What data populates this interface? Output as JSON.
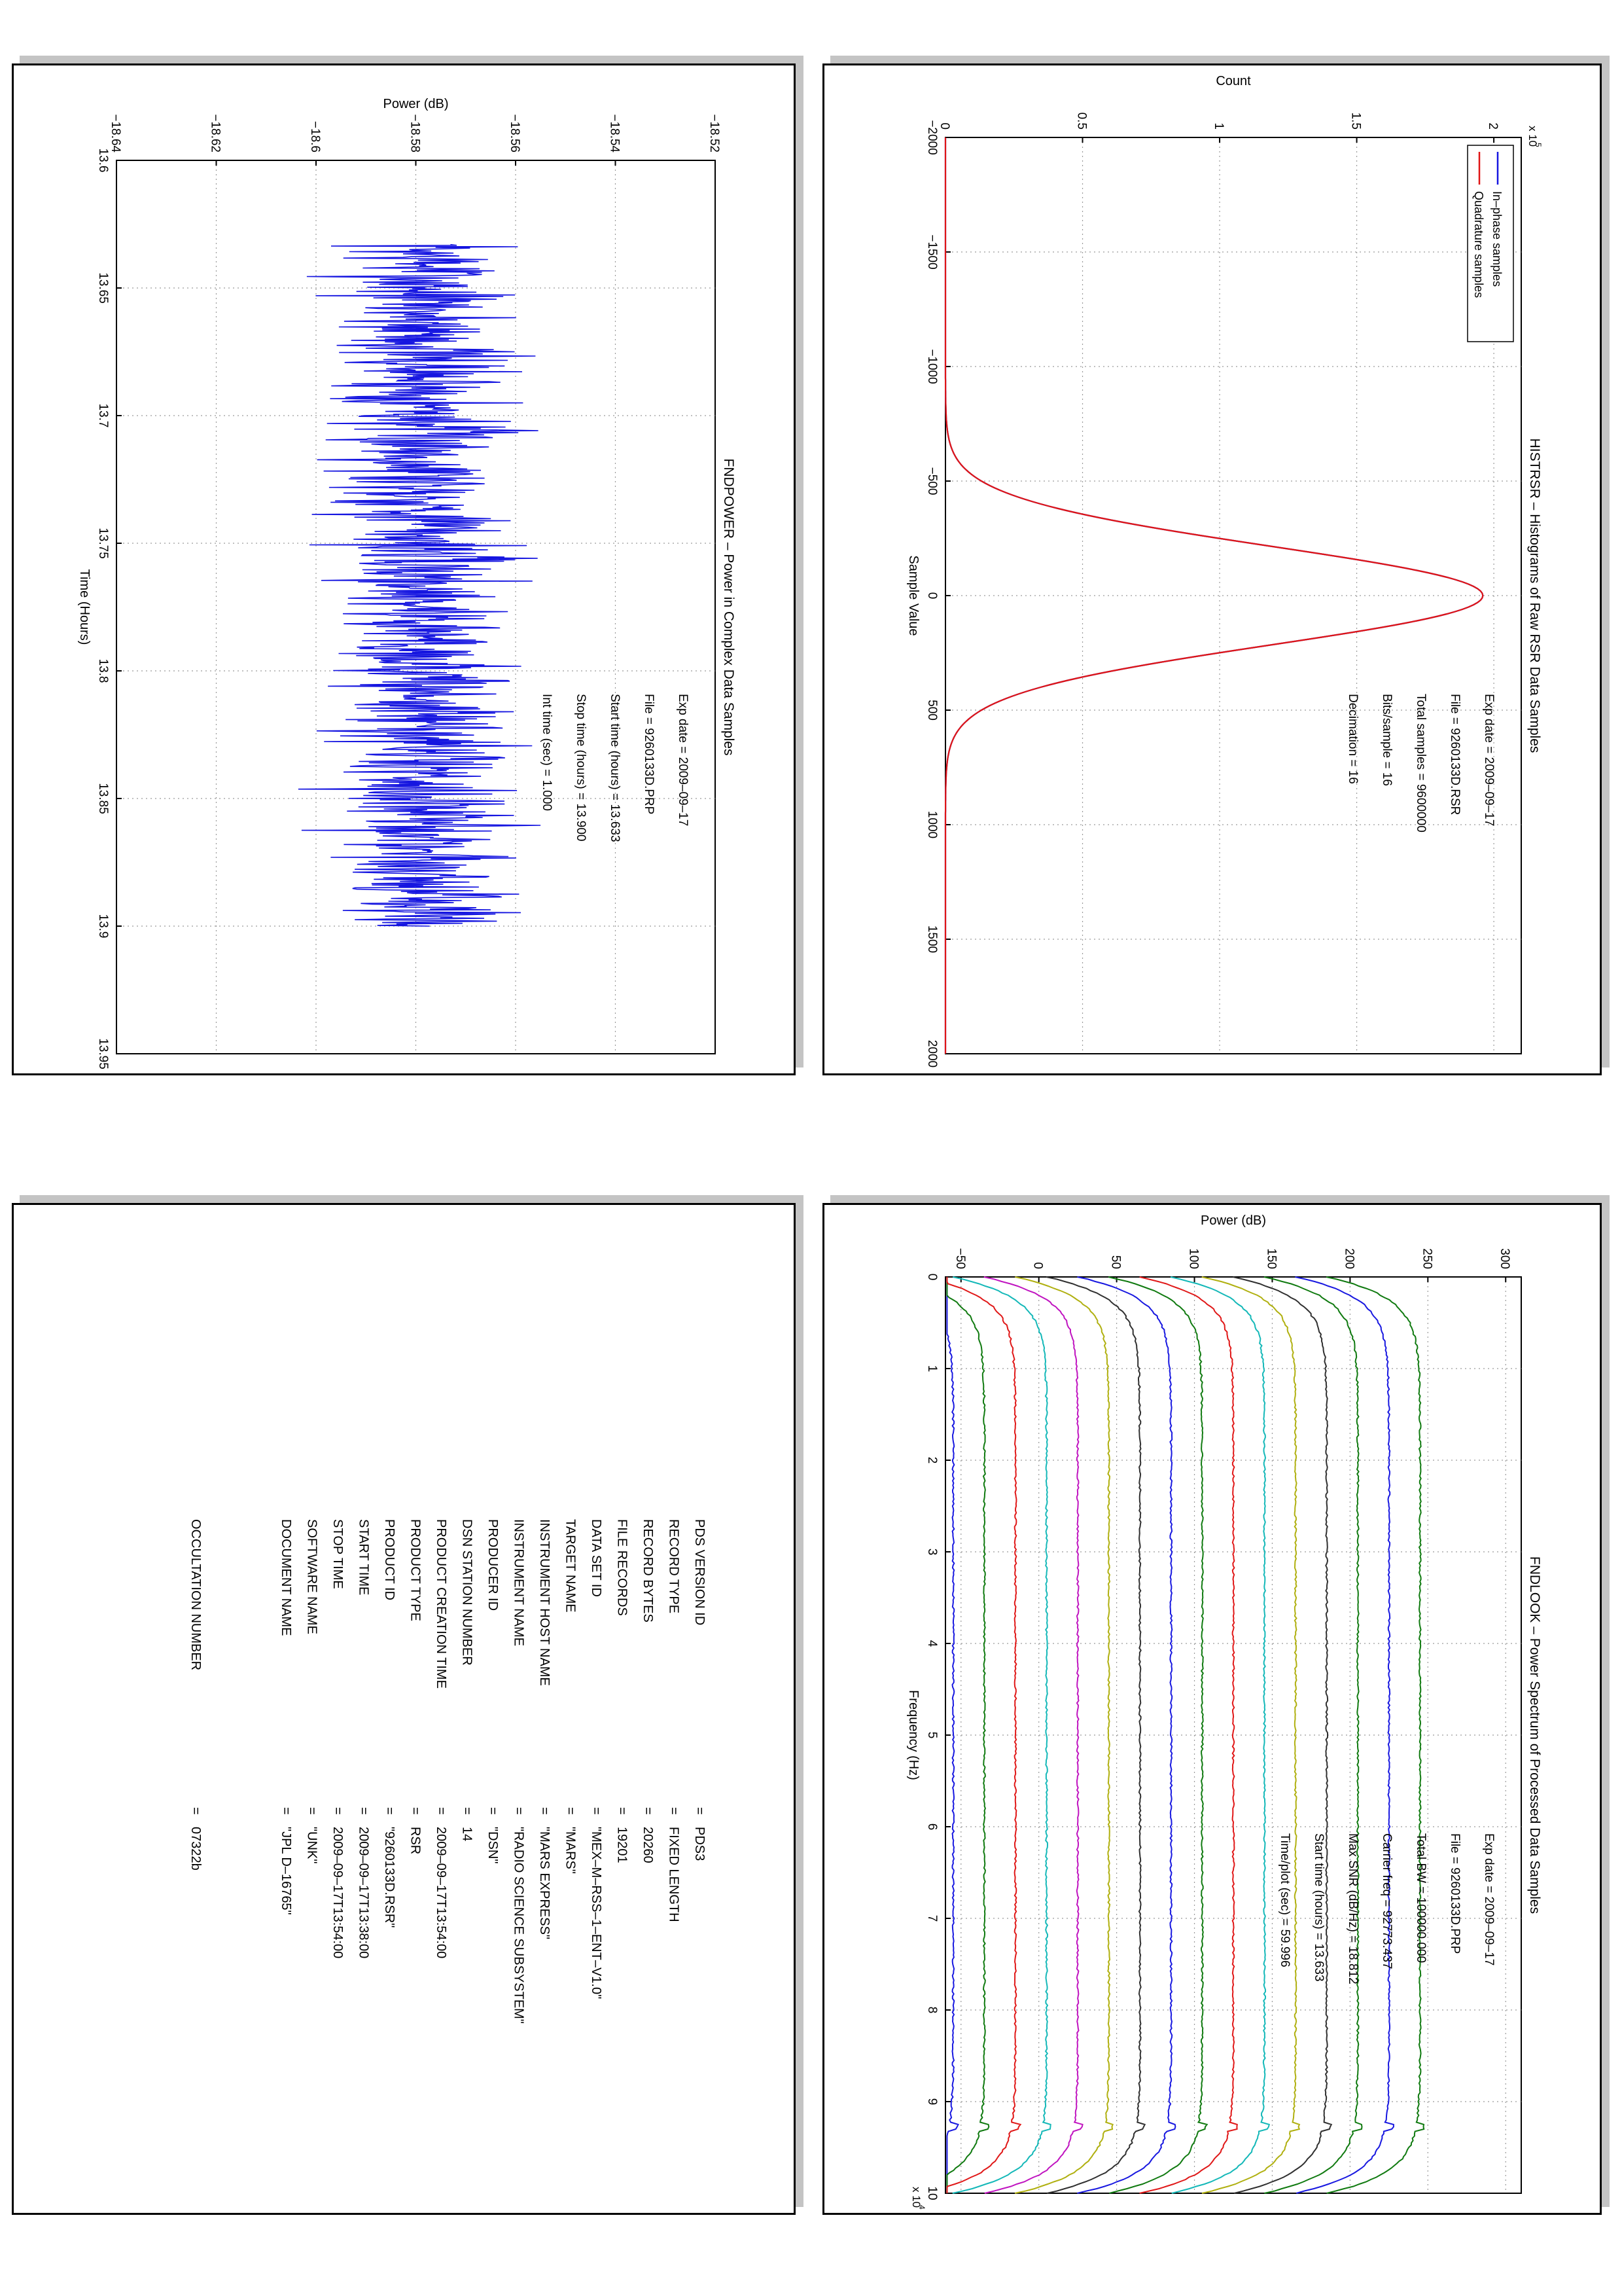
{
  "colors": {
    "inphase": "#1515e0",
    "quadrature": "#e01515",
    "power_line": "#1515e0",
    "spectrum_series": [
      "#1818e0",
      "#107a10",
      "#e01818",
      "#14b8b8",
      "#c014c0",
      "#b0b010",
      "#303030",
      "#1818e0",
      "#107a10",
      "#e01818",
      "#14b8b8",
      "#b0b010",
      "#303030",
      "#107a10"
    ]
  },
  "chart_data": [
    {
      "type": "line",
      "title": "HISTRSR – Histograms of Raw RSR Data Samples",
      "xlabel": "Sample Value",
      "ylabel": "Count",
      "xlim": [
        -2000,
        2000
      ],
      "ylim": [
        0,
        210000
      ],
      "exponent_label": "x 10",
      "exponent_power": "5",
      "xticks": [
        "−2000",
        "−1500",
        "−1000",
        "−500",
        "0",
        "500",
        "1000",
        "1500",
        "2000"
      ],
      "yticks": [
        "0",
        "0.5",
        "1",
        "1.5",
        "2"
      ],
      "grid": true,
      "legend_position": "top-left",
      "series": [
        {
          "name": "In–phase samples",
          "shape": "gaussian",
          "mean": 0,
          "sigma": 215,
          "peak": 196000
        },
        {
          "name": "Quadrature samples",
          "shape": "gaussian",
          "mean": 0,
          "sigma": 215,
          "peak": 196000
        }
      ],
      "annotations": [
        "Exp date = 2009–09–17",
        "File = 9260133D.RSR",
        "Total samples =   9600000",
        "Bits/sample   =       16",
        "Decimation    =       16"
      ]
    },
    {
      "type": "line",
      "title": "FNDPOWER – Power in Complex Data Samples",
      "xlabel": "Time (Hours)",
      "ylabel": "Power (dB)",
      "xlim": [
        13.6,
        13.95
      ],
      "ylim": [
        -18.64,
        -18.52
      ],
      "xticks": [
        "13.6",
        "13.65",
        "13.7",
        "13.75",
        "13.8",
        "13.85",
        "13.9",
        "13.95"
      ],
      "yticks": [
        "−18.64",
        "−18.62",
        "−18.6",
        "−18.58",
        "−18.56",
        "−18.54",
        "−18.52"
      ],
      "grid": true,
      "series": [
        {
          "name": "",
          "x_start": 13.633,
          "x_end": 13.9,
          "mean": -18.578,
          "range": [
            -18.604,
            -18.548
          ]
        }
      ],
      "annotations": [
        "Exp date = 2009–09–17",
        "File = 9260133D.PRP",
        "Start time (hours) = 13.633",
        "Stop time (hours)  = 13.900",
        "Int time (sec)   =     1.000"
      ]
    },
    {
      "type": "line",
      "title": "FNDLOOK – Power Spectrum of Processed Data Samples",
      "xlabel": "Frequency (Hz)",
      "ylabel": "Power (dB)",
      "xlim": [
        0,
        100000
      ],
      "ylim": [
        -60,
        310
      ],
      "exponent_label": "x 10",
      "exponent_power": "4",
      "xticks": [
        "0",
        "1",
        "2",
        "3",
        "4",
        "5",
        "6",
        "7",
        "8",
        "9",
        "10"
      ],
      "yticks": [
        "−50",
        "0",
        "50",
        "100",
        "150",
        "200",
        "250",
        "300"
      ],
      "grid": true,
      "series_offsets_db": [
        -55,
        -35,
        -15,
        5,
        25,
        45,
        65,
        85,
        105,
        125,
        145,
        165,
        185,
        205,
        225,
        245
      ],
      "annotations": [
        "Exp date = 2009–09–17",
        "File = 9260133D.PRP",
        "Total BW =   100000.000",
        "Carrier freq =   92773.437",
        "Max SNR (dB/Hz) =   18.812",
        "Start time (hours) =   13.633",
        "Time/plot (sec) =   59.996"
      ]
    }
  ],
  "label_table": {
    "rows": [
      {
        "key": "PDS VERSION ID",
        "value": "PDS3"
      },
      {
        "key": "RECORD TYPE",
        "value": "FIXED LENGTH"
      },
      {
        "key": "RECORD BYTES",
        "value": "20260"
      },
      {
        "key": "FILE RECORDS",
        "value": "19201"
      },
      {
        "key": "DATA SET ID",
        "value": "\"MEX–M–RSS–1–ENT–V1.0\""
      },
      {
        "key": "TARGET NAME",
        "value": "\"MARS\""
      },
      {
        "key": "INSTRUMENT HOST NAME",
        "value": "\"MARS EXPRESS\""
      },
      {
        "key": "INSTRUMENT NAME",
        "value": "\"RADIO SCIENCE SUBSYSTEM\""
      },
      {
        "key": "PRODUCER ID",
        "value": "\"DSN\""
      },
      {
        "key": "DSN STATION NUMBER",
        "value": "14"
      },
      {
        "key": "PRODUCT CREATION TIME",
        "value": "2009–09–17T13:54:00"
      },
      {
        "key": "PRODUCT TYPE",
        "value": "RSR"
      },
      {
        "key": "PRODUCT ID",
        "value": "\"9260133D.RSR\""
      },
      {
        "key": "START TIME",
        "value": "2009–09–17T13:38:00"
      },
      {
        "key": "STOP TIME",
        "value": "2009–09–17T13:54:00"
      },
      {
        "key": "SOFTWARE NAME",
        "value": "\"UNK\""
      },
      {
        "key": "DOCUMENT NAME",
        "value": "\"JPL D–16765\""
      }
    ],
    "occultation": {
      "key": "OCCULTATION NUMBER",
      "value": "07322b"
    },
    "separator": "="
  }
}
